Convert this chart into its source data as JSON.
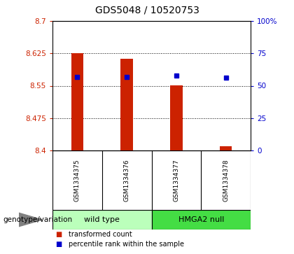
{
  "title": "GDS5048 / 10520753",
  "samples": [
    "GSM1334375",
    "GSM1334376",
    "GSM1334377",
    "GSM1334378"
  ],
  "bar_baseline": 8.4,
  "bar_tops": [
    8.625,
    8.613,
    8.551,
    8.41
  ],
  "percentile_ranks": [
    57,
    57,
    58,
    56
  ],
  "ylim_left": [
    8.4,
    8.7
  ],
  "ylim_right": [
    0,
    100
  ],
  "yticks_left": [
    8.4,
    8.475,
    8.55,
    8.625,
    8.7
  ],
  "yticks_right": [
    0,
    25,
    50,
    75,
    100
  ],
  "ytick_labels_left": [
    "8.4",
    "8.475",
    "8.55",
    "8.625",
    "8.7"
  ],
  "ytick_labels_right": [
    "0",
    "25",
    "50",
    "75",
    "100%"
  ],
  "bar_color": "#cc2200",
  "dot_color": "#0000cc",
  "groups": [
    {
      "label": "wild type",
      "samples": [
        0,
        1
      ],
      "color": "#bbffbb"
    },
    {
      "label": "HMGA2 null",
      "samples": [
        2,
        3
      ],
      "color": "#44dd44"
    }
  ],
  "group_label_prefix": "genotype/variation",
  "legend_items": [
    {
      "color": "#cc2200",
      "label": "transformed count"
    },
    {
      "color": "#0000cc",
      "label": "percentile rank within the sample"
    }
  ],
  "bar_width": 0.25,
  "background_color": "#ffffff",
  "plot_bg_color": "#ffffff",
  "tick_label_color_left": "#cc2200",
  "tick_label_color_right": "#0000cc",
  "sample_box_color": "#cccccc",
  "title_fontsize": 10,
  "tick_fontsize": 7.5,
  "sample_fontsize": 6.5,
  "group_fontsize": 8,
  "legend_fontsize": 7
}
